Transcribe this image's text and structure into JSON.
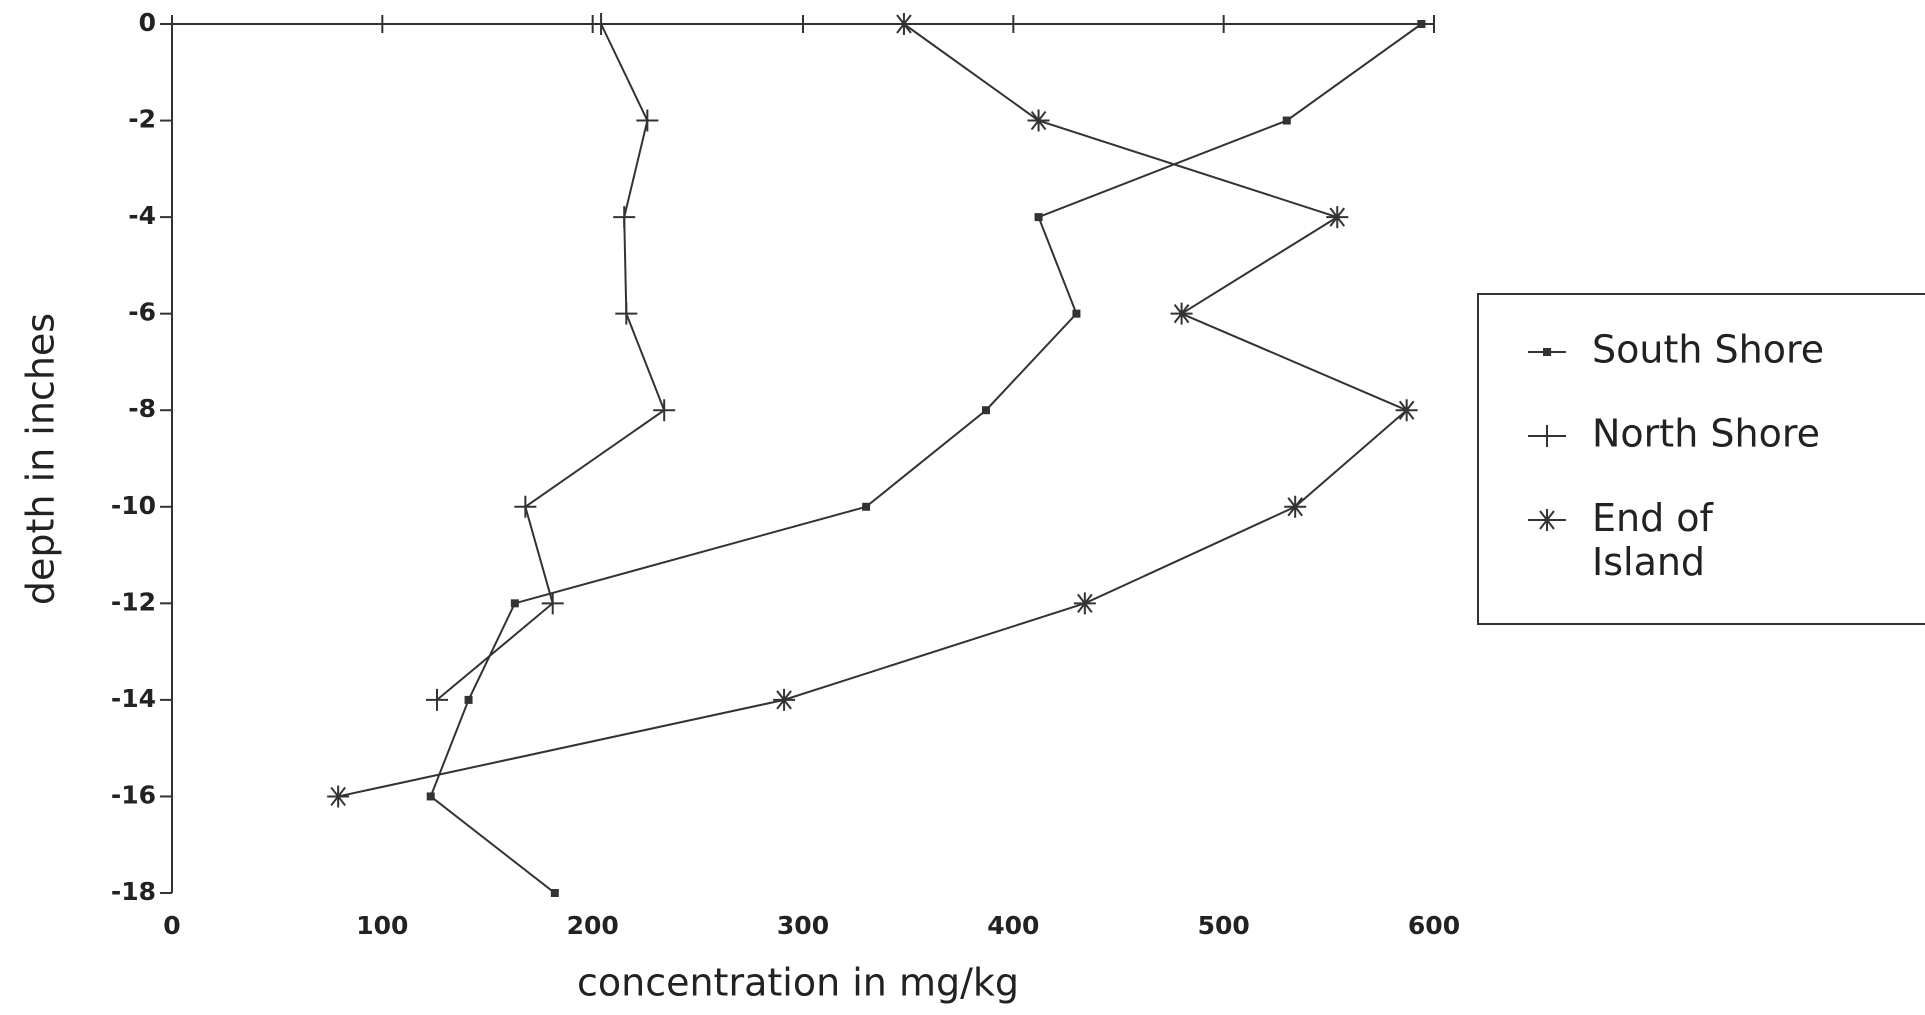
{
  "chart_data": {
    "type": "line",
    "x_label": "concentration in mg/kg",
    "y_label": "depth in inches",
    "xlim": [
      0,
      600
    ],
    "xticks": [
      0,
      100,
      200,
      300,
      400,
      500,
      600
    ],
    "ylim": [
      -18,
      0
    ],
    "yticks": [
      0,
      -2,
      -4,
      -6,
      -8,
      -10,
      -12,
      -14,
      -16,
      -18
    ],
    "grid": false,
    "legend": "right",
    "series": [
      {
        "name": "South Shore",
        "marker": "square",
        "color": "#333333",
        "x": [
          594,
          530,
          412,
          430,
          387,
          330,
          163,
          141,
          123,
          182
        ],
        "values": [
          0,
          -2,
          -4,
          -6,
          -8,
          -10,
          -12,
          -14,
          -16,
          -18
        ]
      },
      {
        "name": "North Shore",
        "marker": "plus",
        "color": "#333333",
        "x": [
          204,
          226,
          215,
          216,
          234,
          168,
          181,
          126
        ],
        "values": [
          0,
          -2,
          -4,
          -6,
          -8,
          -10,
          -12,
          -14
        ]
      },
      {
        "name": "End of Island",
        "marker": "asterisk",
        "color": "#333333",
        "x": [
          348,
          412,
          554,
          480,
          587,
          534,
          434,
          291,
          79
        ],
        "values": [
          0,
          -2,
          -4,
          -6,
          -8,
          -10,
          -12,
          -14,
          -16
        ]
      }
    ]
  }
}
